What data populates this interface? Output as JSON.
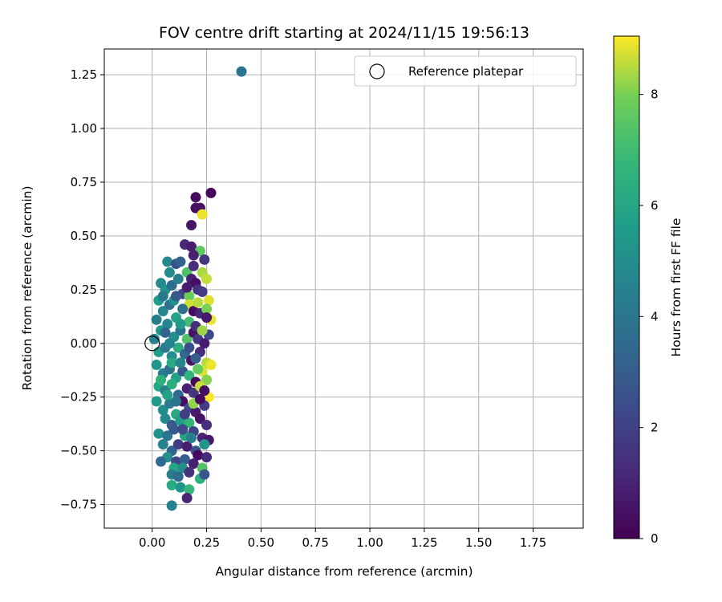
{
  "chart_data": {
    "type": "scatter",
    "title": "FOV centre drift starting at 2024/11/15 19:56:13",
    "xlabel": "Angular distance from reference (arcmin)",
    "ylabel": "Rotation from reference (arcmin)",
    "xlim": [
      -0.22,
      1.98
    ],
    "ylim": [
      -0.86,
      1.37
    ],
    "xticks": [
      0.0,
      0.25,
      0.5,
      0.75,
      1.0,
      1.25,
      1.5,
      1.75
    ],
    "xtick_labels": [
      "0.00",
      "0.25",
      "0.50",
      "0.75",
      "1.00",
      "1.25",
      "1.50",
      "1.75"
    ],
    "yticks": [
      -0.75,
      -0.5,
      -0.25,
      0.0,
      0.25,
      0.5,
      0.75,
      1.0,
      1.25
    ],
    "ytick_labels": [
      "−0.75",
      "−0.50",
      "−0.25",
      "0.00",
      "0.25",
      "0.50",
      "0.75",
      "1.00",
      "1.25"
    ],
    "grid": true,
    "legend": {
      "placement": "top-right",
      "entries": [
        "Reference platepar"
      ]
    },
    "reference_point": {
      "x": 0.0,
      "y": 0.0
    },
    "colorbar": {
      "label": "Hours from first FF file",
      "colormap": "viridis",
      "range": [
        0,
        9.05
      ],
      "ticks": [
        0,
        2,
        4,
        6,
        8
      ],
      "tick_labels": [
        "0",
        "2",
        "4",
        "6",
        "8"
      ]
    },
    "series": [
      {
        "points": [
          [
            0.41,
            1.265,
            4.0
          ],
          [
            0.27,
            0.7,
            0.2
          ],
          [
            0.2,
            0.68,
            0.3
          ],
          [
            0.2,
            0.63,
            0.4
          ],
          [
            0.22,
            0.63,
            0.5
          ],
          [
            0.23,
            0.6,
            8.9
          ],
          [
            0.18,
            0.55,
            0.6
          ],
          [
            0.15,
            0.46,
            1.2
          ],
          [
            0.18,
            0.45,
            0.8
          ],
          [
            0.22,
            0.43,
            7.6
          ],
          [
            0.19,
            0.41,
            1.0
          ],
          [
            0.24,
            0.39,
            1.6
          ],
          [
            0.07,
            0.38,
            4.8
          ],
          [
            0.11,
            0.37,
            2.5
          ],
          [
            0.13,
            0.38,
            3.2
          ],
          [
            0.16,
            0.33,
            7.3
          ],
          [
            0.18,
            0.3,
            0.9
          ],
          [
            0.2,
            0.28,
            0.4
          ],
          [
            0.23,
            0.33,
            8.4
          ],
          [
            0.25,
            0.3,
            8.6
          ],
          [
            0.04,
            0.28,
            4.9
          ],
          [
            0.06,
            0.25,
            5.2
          ],
          [
            0.09,
            0.27,
            3.6
          ],
          [
            0.12,
            0.3,
            4.4
          ],
          [
            0.14,
            0.23,
            2.0
          ],
          [
            0.17,
            0.22,
            7.8
          ],
          [
            0.21,
            0.25,
            1.5
          ],
          [
            0.26,
            0.2,
            8.8
          ],
          [
            0.03,
            0.2,
            5.6
          ],
          [
            0.05,
            0.15,
            4.7
          ],
          [
            0.08,
            0.18,
            3.8
          ],
          [
            0.11,
            0.12,
            5.9
          ],
          [
            0.17,
            0.18,
            8.7
          ],
          [
            0.19,
            0.15,
            0.3
          ],
          [
            0.22,
            0.14,
            1.1
          ],
          [
            0.25,
            0.16,
            8.0
          ],
          [
            0.27,
            0.11,
            8.9
          ],
          [
            0.02,
            0.11,
            4.2
          ],
          [
            0.04,
            0.06,
            5.4
          ],
          [
            0.07,
            0.09,
            4.6
          ],
          [
            0.1,
            0.03,
            5.1
          ],
          [
            0.13,
            0.06,
            3.9
          ],
          [
            0.16,
            0.02,
            7.4
          ],
          [
            0.19,
            0.05,
            0.5
          ],
          [
            0.21,
            0.02,
            1.7
          ],
          [
            0.24,
            0.0,
            0.8
          ],
          [
            0.26,
            0.04,
            2.2
          ],
          [
            0.01,
            0.02,
            4.5
          ],
          [
            0.03,
            -0.04,
            5.7
          ],
          [
            0.06,
            -0.02,
            4.1
          ],
          [
            0.09,
            -0.06,
            5.0
          ],
          [
            0.12,
            -0.02,
            6.3
          ],
          [
            0.15,
            -0.05,
            3.4
          ],
          [
            0.18,
            -0.08,
            0.6
          ],
          [
            0.22,
            -0.04,
            1.3
          ],
          [
            0.25,
            -0.09,
            8.5
          ],
          [
            0.27,
            -0.1,
            8.9
          ],
          [
            0.02,
            -0.1,
            5.3
          ],
          [
            0.05,
            -0.14,
            4.3
          ],
          [
            0.08,
            -0.12,
            3.7
          ],
          [
            0.11,
            -0.16,
            5.8
          ],
          [
            0.14,
            -0.13,
            2.8
          ],
          [
            0.17,
            -0.15,
            6.6
          ],
          [
            0.2,
            -0.18,
            0.2
          ],
          [
            0.23,
            -0.13,
            8.8
          ],
          [
            0.25,
            -0.17,
            8.1
          ],
          [
            0.03,
            -0.2,
            6.0
          ],
          [
            0.06,
            -0.22,
            4.4
          ],
          [
            0.09,
            -0.19,
            6.4
          ],
          [
            0.12,
            -0.24,
            3.5
          ],
          [
            0.16,
            -0.21,
            0.9
          ],
          [
            0.19,
            -0.23,
            1.6
          ],
          [
            0.22,
            -0.2,
            8.6
          ],
          [
            0.26,
            -0.25,
            9.0
          ],
          [
            0.02,
            -0.27,
            5.5
          ],
          [
            0.05,
            -0.31,
            5.0
          ],
          [
            0.08,
            -0.28,
            4.2
          ],
          [
            0.11,
            -0.33,
            6.1
          ],
          [
            0.14,
            -0.27,
            0.4
          ],
          [
            0.17,
            -0.3,
            2.4
          ],
          [
            0.2,
            -0.32,
            0.7
          ],
          [
            0.24,
            -0.29,
            1.9
          ],
          [
            0.06,
            -0.35,
            4.8
          ],
          [
            0.09,
            -0.38,
            3.0
          ],
          [
            0.13,
            -0.36,
            5.6
          ],
          [
            0.17,
            -0.37,
            6.7
          ],
          [
            0.22,
            -0.35,
            0.5
          ],
          [
            0.25,
            -0.38,
            1.4
          ],
          [
            0.03,
            -0.42,
            5.2
          ],
          [
            0.07,
            -0.43,
            4.0
          ],
          [
            0.1,
            -0.4,
            2.9
          ],
          [
            0.15,
            -0.43,
            5.9
          ],
          [
            0.19,
            -0.41,
            2.1
          ],
          [
            0.23,
            -0.44,
            1.0
          ],
          [
            0.26,
            -0.45,
            0.6
          ],
          [
            0.05,
            -0.47,
            4.6
          ],
          [
            0.09,
            -0.5,
            3.3
          ],
          [
            0.12,
            -0.47,
            1.8
          ],
          [
            0.16,
            -0.48,
            0.8
          ],
          [
            0.2,
            -0.5,
            2.6
          ],
          [
            0.24,
            -0.47,
            5.3
          ],
          [
            0.07,
            -0.53,
            5.1
          ],
          [
            0.11,
            -0.55,
            2.2
          ],
          [
            0.15,
            -0.54,
            3.1
          ],
          [
            0.21,
            -0.52,
            0.3
          ],
          [
            0.25,
            -0.53,
            1.2
          ],
          [
            0.04,
            -0.55,
            3.4
          ],
          [
            0.1,
            -0.58,
            6.0
          ],
          [
            0.14,
            -0.58,
            5.0
          ],
          [
            0.19,
            -0.56,
            0.9
          ],
          [
            0.23,
            -0.58,
            7.4
          ],
          [
            0.09,
            -0.61,
            4.4
          ],
          [
            0.12,
            -0.62,
            3.6
          ],
          [
            0.17,
            -0.6,
            1.5
          ],
          [
            0.22,
            -0.63,
            6.5
          ],
          [
            0.24,
            -0.61,
            2.7
          ],
          [
            0.09,
            -0.66,
            6.2
          ],
          [
            0.13,
            -0.67,
            5.3
          ],
          [
            0.17,
            -0.68,
            6.8
          ],
          [
            0.16,
            -0.72,
            1.1
          ],
          [
            0.09,
            -0.755,
            4.5
          ],
          [
            0.05,
            0.22,
            4.1
          ],
          [
            0.08,
            0.33,
            4.9
          ],
          [
            0.1,
            0.2,
            5.2
          ],
          [
            0.14,
            0.16,
            3.7
          ],
          [
            0.17,
            0.1,
            7.1
          ],
          [
            0.2,
            0.08,
            1.4
          ],
          [
            0.23,
            0.06,
            8.3
          ],
          [
            0.25,
            0.12,
            0.7
          ],
          [
            0.06,
            0.05,
            3.3
          ],
          [
            0.09,
            -0.09,
            6.2
          ],
          [
            0.13,
            -0.09,
            4.7
          ],
          [
            0.17,
            -0.02,
            2.5
          ],
          [
            0.21,
            -0.12,
            7.7
          ],
          [
            0.24,
            -0.22,
            0.4
          ],
          [
            0.07,
            -0.24,
            5.8
          ],
          [
            0.11,
            -0.27,
            3.9
          ],
          [
            0.15,
            -0.33,
            1.9
          ],
          [
            0.19,
            -0.28,
            8.2
          ],
          [
            0.22,
            -0.26,
            0.3
          ],
          [
            0.13,
            0.09,
            5.5
          ],
          [
            0.16,
            0.26,
            0.8
          ],
          [
            0.19,
            0.36,
            1.3
          ],
          [
            0.21,
            0.19,
            8.5
          ],
          [
            0.18,
            -0.44,
            4.3
          ],
          [
            0.14,
            -0.4,
            2.3
          ],
          [
            0.08,
            0.0,
            4.6
          ],
          [
            0.11,
            0.22,
            2.8
          ],
          [
            0.04,
            -0.17,
            6.5
          ],
          [
            0.2,
            -0.07,
            3.0
          ],
          [
            0.23,
            0.24,
            1.8
          ]
        ]
      }
    ]
  }
}
